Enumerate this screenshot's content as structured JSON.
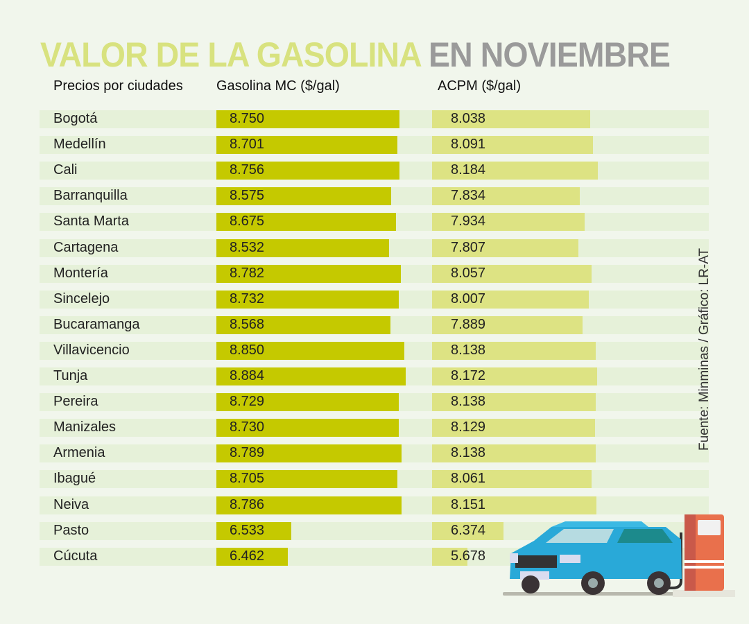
{
  "title": {
    "part1": "VALOR DE LA GASOLINA",
    "part2": "EN NOVIEMBRE"
  },
  "headers": {
    "city": "Precios por ciudades",
    "gasoline": "Gasolina MC ($/gal)",
    "acpm": "ACPM ($/gal)"
  },
  "source": "Fuente: Minminas  / Gráfico: LR-AT",
  "colors": {
    "gasoline_bar": "#c5c900",
    "acpm_bar": "#dde383",
    "title_green": "#d8e27f",
    "title_gray": "#9a9a9a",
    "row_bg": "#e6f1d9"
  },
  "chart_data": {
    "type": "bar",
    "title": "VALOR DE LA GASOLINA EN NOVIEMBRE",
    "categories": [
      "Bogotá",
      "Medellín",
      "Cali",
      "Barranquilla",
      "Santa Marta",
      "Cartagena",
      "Montería",
      "Sincelejo",
      "Bucaramanga",
      "Villavicencio",
      "Tunja",
      "Pereira",
      "Manizales",
      "Armenia",
      "Ibagué",
      "Neiva",
      "Pasto",
      "Cúcuta"
    ],
    "series": [
      {
        "name": "Gasolina MC ($/gal)",
        "labels": [
          "8.750",
          "8.701",
          "8.756",
          "8.575",
          "8.675",
          "8.532",
          "8.782",
          "8.732",
          "8.568",
          "8.850",
          "8.884",
          "8.729",
          "8.730",
          "8.789",
          "8.705",
          "8.786",
          "6.533",
          "6.462"
        ],
        "values": [
          8750,
          8701,
          8756,
          8575,
          8675,
          8532,
          8782,
          8732,
          8568,
          8850,
          8884,
          8729,
          8730,
          8789,
          8705,
          8786,
          6533,
          6462
        ]
      },
      {
        "name": "ACPM ($/gal)",
        "labels": [
          "8.038",
          "8.091",
          "8.184",
          "7.834",
          "7.934",
          "7.807",
          "8.057",
          "8.007",
          "7.889",
          "8.138",
          "8.172",
          "8.138",
          "8.129",
          "8.138",
          "8.061",
          "8.151",
          "6.374",
          "5.678"
        ],
        "values": [
          8038,
          8091,
          8184,
          7834,
          7934,
          7807,
          8057,
          8007,
          7889,
          8138,
          8172,
          8138,
          8129,
          8138,
          8061,
          8151,
          6374,
          5678
        ]
      }
    ]
  }
}
